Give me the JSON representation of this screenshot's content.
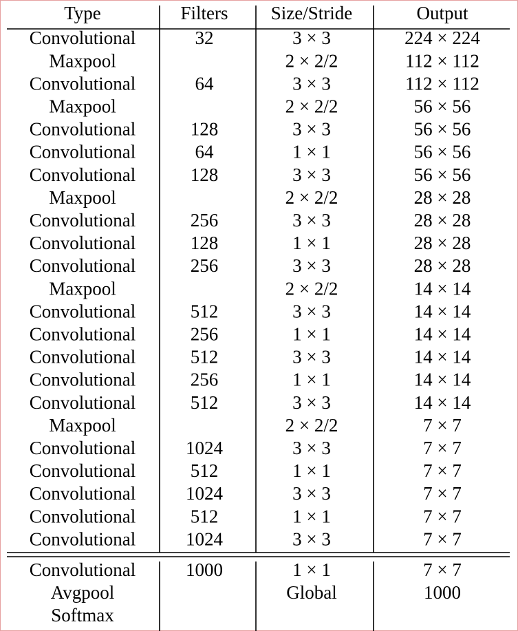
{
  "table": {
    "header": [
      "Type",
      "Filters",
      "Size/Stride",
      "Output"
    ],
    "rows": [
      [
        "Convolutional",
        "32",
        "3 × 3",
        "224 × 224"
      ],
      [
        "Maxpool",
        null,
        "2 × 2/2",
        "112 × 112"
      ],
      [
        "Convolutional",
        "64",
        "3 × 3",
        "112 × 112"
      ],
      [
        "Maxpool",
        null,
        "2 × 2/2",
        "56 × 56"
      ],
      [
        "Convolutional",
        "128",
        "3 × 3",
        "56 × 56"
      ],
      [
        "Convolutional",
        "64",
        "1 × 1",
        "56 × 56"
      ],
      [
        "Convolutional",
        "128",
        "3 × 3",
        "56 × 56"
      ],
      [
        "Maxpool",
        null,
        "2 × 2/2",
        "28 × 28"
      ],
      [
        "Convolutional",
        "256",
        "3 × 3",
        "28 × 28"
      ],
      [
        "Convolutional",
        "128",
        "1 × 1",
        "28 × 28"
      ],
      [
        "Convolutional",
        "256",
        "3 × 3",
        "28 × 28"
      ],
      [
        "Maxpool",
        null,
        "2 × 2/2",
        "14 × 14"
      ],
      [
        "Convolutional",
        "512",
        "3 × 3",
        "14 × 14"
      ],
      [
        "Convolutional",
        "256",
        "1 × 1",
        "14 × 14"
      ],
      [
        "Convolutional",
        "512",
        "3 × 3",
        "14 × 14"
      ],
      [
        "Convolutional",
        "256",
        "1 × 1",
        "14 × 14"
      ],
      [
        "Convolutional",
        "512",
        "3 × 3",
        "14 × 14"
      ],
      [
        "Maxpool",
        null,
        "2 × 2/2",
        "7 × 7"
      ],
      [
        "Convolutional",
        "1024",
        "3 × 3",
        "7 × 7"
      ],
      [
        "Convolutional",
        "512",
        "1 × 1",
        "7 × 7"
      ],
      [
        "Convolutional",
        "1024",
        "3 × 3",
        "7 × 7"
      ],
      [
        "Convolutional",
        "512",
        "1 × 1",
        "7 × 7"
      ],
      [
        "Convolutional",
        "1024",
        "3 × 3",
        "7 × 7"
      ]
    ],
    "footer_rows": [
      [
        "Convolutional",
        "1000",
        "1 × 1",
        "7 × 7"
      ],
      [
        "Avgpool",
        null,
        "Global",
        "1000"
      ],
      [
        "Softmax",
        null,
        null,
        null
      ]
    ]
  }
}
